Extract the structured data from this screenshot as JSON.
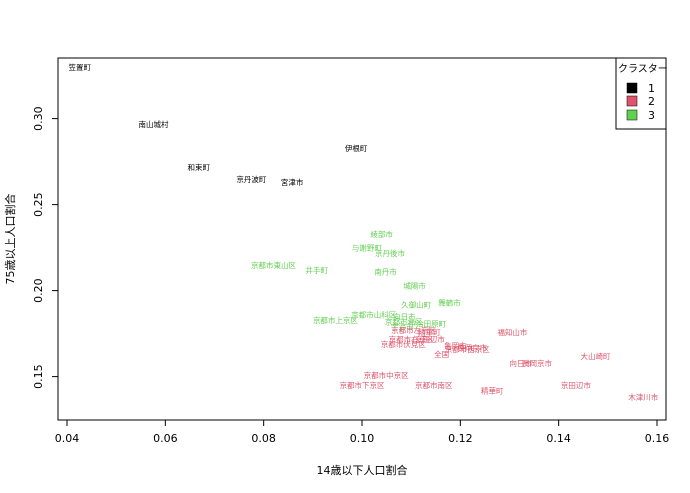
{
  "chart_data": {
    "type": "scatter",
    "title": "",
    "xlabel": "14歳以下人口割合",
    "ylabel": "75歳以上人口割合",
    "xlim": [
      0.04,
      0.16
    ],
    "ylim": [
      0.13,
      0.33
    ],
    "x_ticks": [
      0.04,
      0.06,
      0.08,
      0.1,
      0.12,
      0.14,
      0.16
    ],
    "x_tick_labels": [
      "0.04",
      "0.06",
      "0.08",
      "0.10",
      "0.12",
      "0.14",
      "0.16"
    ],
    "y_ticks": [
      0.15,
      0.2,
      0.25,
      0.3
    ],
    "y_tick_labels": [
      "0.15",
      "0.20",
      "0.25",
      "0.30"
    ],
    "grid": false,
    "legend": {
      "title": "クラスター",
      "position": "top-right",
      "entries": [
        {
          "label": "1",
          "color": "#000000"
        },
        {
          "label": "2",
          "color": "#DF536B"
        },
        {
          "label": "3",
          "color": "#61D04F"
        }
      ]
    },
    "points": [
      {
        "label": "笠置町",
        "x": 0.0426,
        "y": 0.33,
        "cluster": 1
      },
      {
        "label": "南山城村",
        "x": 0.0576,
        "y": 0.297,
        "cluster": 1
      },
      {
        "label": "和束町",
        "x": 0.0668,
        "y": 0.272,
        "cluster": 1
      },
      {
        "label": "京丹波町",
        "x": 0.0775,
        "y": 0.265,
        "cluster": 1
      },
      {
        "label": "宮津市",
        "x": 0.0858,
        "y": 0.263,
        "cluster": 1
      },
      {
        "label": "伊根町",
        "x": 0.0988,
        "y": 0.283,
        "cluster": 1
      },
      {
        "label": "綾部市",
        "x": 0.104,
        "y": 0.233,
        "cluster": 3
      },
      {
        "label": "与謝野町",
        "x": 0.101,
        "y": 0.225,
        "cluster": 3
      },
      {
        "label": "京丹後市",
        "x": 0.1057,
        "y": 0.222,
        "cluster": 3
      },
      {
        "label": "京都市東山区",
        "x": 0.082,
        "y": 0.215,
        "cluster": 3
      },
      {
        "label": "井手町",
        "x": 0.0908,
        "y": 0.212,
        "cluster": 3
      },
      {
        "label": "南丹市",
        "x": 0.1048,
        "y": 0.211,
        "cluster": 3
      },
      {
        "label": "城陽市",
        "x": 0.1107,
        "y": 0.203,
        "cluster": 3
      },
      {
        "label": "舞鶴市",
        "x": 0.1178,
        "y": 0.193,
        "cluster": 3
      },
      {
        "label": "久御山町",
        "x": 0.111,
        "y": 0.192,
        "cluster": 3
      },
      {
        "label": "京都市山科区",
        "x": 0.1024,
        "y": 0.186,
        "cluster": 3
      },
      {
        "label": "京都市上京区",
        "x": 0.0946,
        "y": 0.183,
        "cluster": 3
      },
      {
        "label": "向日市",
        "x": 0.1086,
        "y": 0.185,
        "cluster": 3
      },
      {
        "label": "京都市北区",
        "x": 0.1085,
        "y": 0.182,
        "cluster": 3
      },
      {
        "label": "宇治田原町",
        "x": 0.1133,
        "y": 0.181,
        "cluster": 3
      },
      {
        "label": "宇治市",
        "x": 0.1082,
        "y": 0.179,
        "cluster": 3
      },
      {
        "label": "京都市左京区",
        "x": 0.1105,
        "y": 0.177,
        "cluster": 2
      },
      {
        "label": "精華町",
        "x": 0.1137,
        "y": 0.176,
        "cluster": 2
      },
      {
        "label": "京都市右京区",
        "x": 0.11,
        "y": 0.172,
        "cluster": 2
      },
      {
        "label": "京田辺市",
        "x": 0.1138,
        "y": 0.172,
        "cluster": 2
      },
      {
        "label": "長岡京市",
        "x": 0.1224,
        "y": 0.167,
        "cluster": 2
      },
      {
        "label": "亀岡市",
        "x": 0.119,
        "y": 0.168,
        "cluster": 2
      },
      {
        "label": "京都市伏見区",
        "x": 0.1084,
        "y": 0.169,
        "cluster": 2
      },
      {
        "label": "京都市西京区",
        "x": 0.1214,
        "y": 0.166,
        "cluster": 2
      },
      {
        "label": "全国",
        "x": 0.1162,
        "y": 0.163,
        "cluster": 2
      },
      {
        "label": "福知山市",
        "x": 0.1306,
        "y": 0.176,
        "cluster": 2
      },
      {
        "label": "向日市",
        "x": 0.1323,
        "y": 0.158,
        "cluster": 2
      },
      {
        "label": "長岡京市",
        "x": 0.1356,
        "y": 0.158,
        "cluster": 2
      },
      {
        "label": "大山崎町",
        "x": 0.1475,
        "y": 0.162,
        "cluster": 2
      },
      {
        "label": "京都市中京区",
        "x": 0.1049,
        "y": 0.151,
        "cluster": 2
      },
      {
        "label": "京都市下京区",
        "x": 0.1,
        "y": 0.145,
        "cluster": 2
      },
      {
        "label": "京都市南区",
        "x": 0.1146,
        "y": 0.145,
        "cluster": 2
      },
      {
        "label": "精華町",
        "x": 0.1265,
        "y": 0.142,
        "cluster": 2
      },
      {
        "label": "京田辺市",
        "x": 0.1435,
        "y": 0.145,
        "cluster": 2
      },
      {
        "label": "木津川市",
        "x": 0.1572,
        "y": 0.138,
        "cluster": 2
      }
    ]
  }
}
